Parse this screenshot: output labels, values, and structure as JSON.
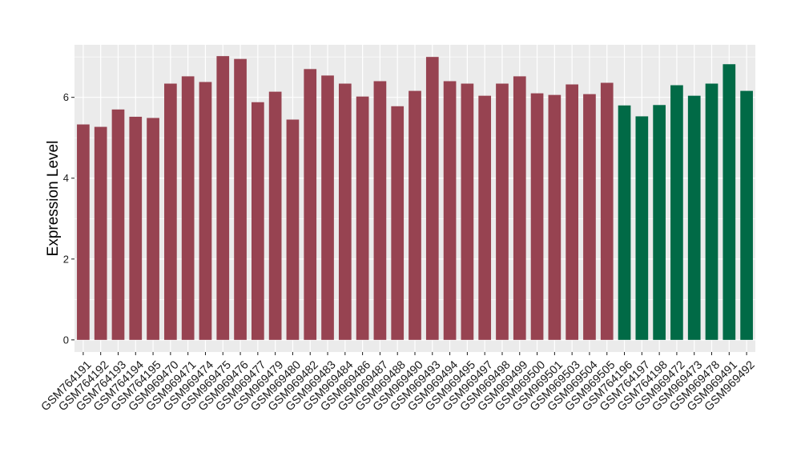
{
  "chart_data": {
    "type": "bar",
    "ylabel": "Expression Level",
    "xlabel": "",
    "ylim": [
      -0.3,
      7.3
    ],
    "yticks": [
      0,
      2,
      4,
      6
    ],
    "grid": true,
    "background": "#ebebeb",
    "categories": [
      "GSM764191",
      "GSM764192",
      "GSM764193",
      "GSM764194",
      "GSM764195",
      "GSM969470",
      "GSM969471",
      "GSM969474",
      "GSM969475",
      "GSM969476",
      "GSM969477",
      "GSM969479",
      "GSM969480",
      "GSM969482",
      "GSM969483",
      "GSM969484",
      "GSM969486",
      "GSM969487",
      "GSM969488",
      "GSM969490",
      "GSM969493",
      "GSM969494",
      "GSM969495",
      "GSM969497",
      "GSM969498",
      "GSM969499",
      "GSM969500",
      "GSM969501",
      "GSM969503",
      "GSM969504",
      "GSM969505",
      "GSM764196",
      "GSM764197",
      "GSM764198",
      "GSM969472",
      "GSM969473",
      "GSM969478",
      "GSM969491",
      "GSM969492"
    ],
    "values": [
      5.33,
      5.27,
      5.7,
      5.52,
      5.49,
      6.34,
      6.52,
      6.38,
      7.02,
      6.95,
      5.88,
      6.14,
      5.45,
      6.7,
      6.54,
      6.34,
      6.02,
      6.4,
      5.78,
      6.16,
      7.0,
      6.4,
      6.34,
      6.04,
      6.34,
      6.52,
      6.1,
      6.06,
      6.32,
      6.08,
      6.36,
      5.8,
      5.53,
      5.81,
      6.3,
      6.04,
      6.34,
      6.82,
      6.16
    ],
    "groups": [
      "a",
      "a",
      "a",
      "a",
      "a",
      "a",
      "a",
      "a",
      "a",
      "a",
      "a",
      "a",
      "a",
      "a",
      "a",
      "a",
      "a",
      "a",
      "a",
      "a",
      "a",
      "a",
      "a",
      "a",
      "a",
      "a",
      "a",
      "a",
      "a",
      "a",
      "a",
      "b",
      "b",
      "b",
      "b",
      "b",
      "b",
      "b",
      "b"
    ],
    "group_colors": {
      "a": "#974351",
      "b": "#016a46"
    },
    "tick_color": "#1a1a1a",
    "grid_color": "#ffffff"
  }
}
